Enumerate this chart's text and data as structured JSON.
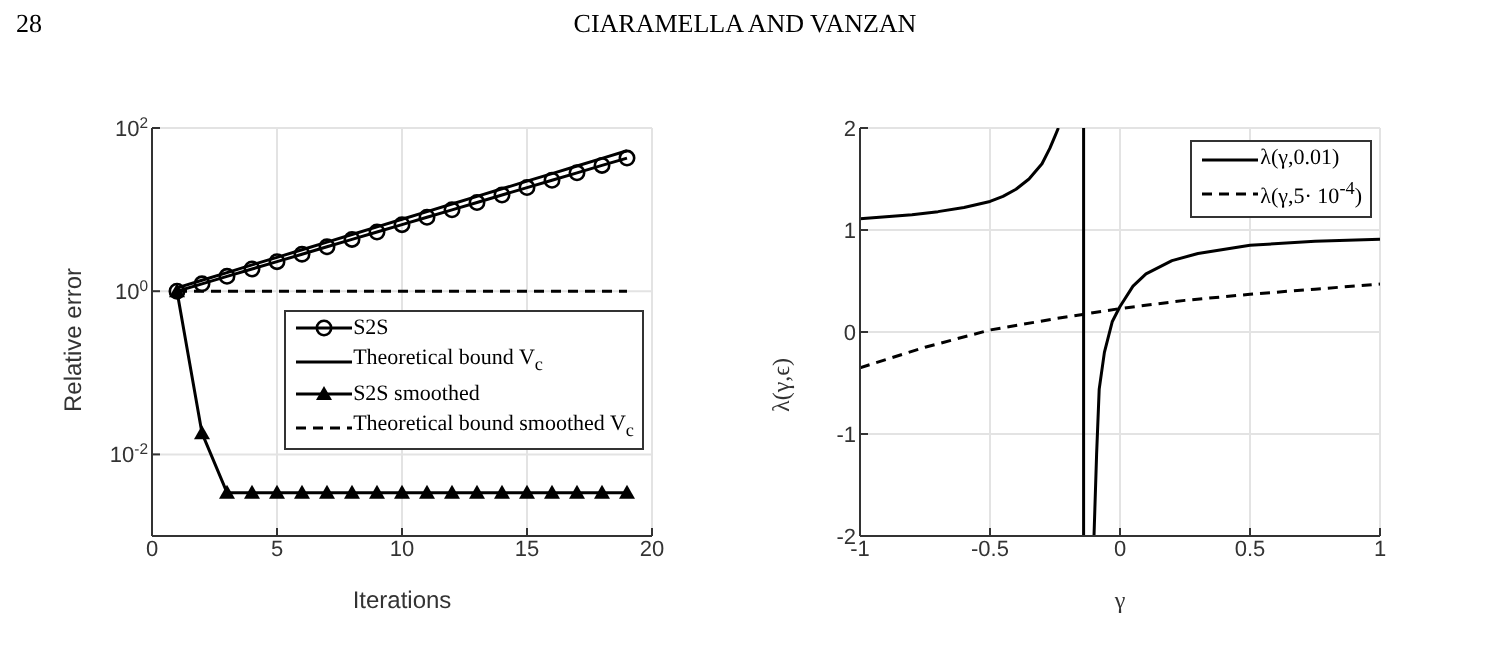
{
  "chart_data": [
    {
      "type": "line",
      "annotations": [
        "28",
        "CIARAMELLA AND VANZAN"
      ],
      "xlabel": "Iterations",
      "ylabel": "Relative error",
      "log": "y",
      "grid": true,
      "legend": "bottom right",
      "xlim": [
        0,
        20
      ],
      "xticks": [
        0,
        5,
        10,
        15,
        20
      ],
      "ylim": [
        0.001,
        100
      ],
      "yticks": [
        {
          "value": 0.01,
          "label": "10$^{-2}$"
        },
        {
          "value": 1,
          "label": "10$^{0}$"
        },
        {
          "value": 100,
          "label": "10$^{2}$"
        }
      ],
      "x": [
        1,
        2,
        3,
        4,
        5,
        6,
        7,
        8,
        9,
        10,
        11,
        12,
        13,
        14,
        15,
        16,
        17,
        18,
        19
      ],
      "series": [
        {
          "name": "S2S",
          "color": "#000000",
          "marker": "circle",
          "line_style": "solid",
          "values": [
            1,
            1.23,
            1.52,
            1.87,
            2.3,
            2.84,
            3.5,
            4.31,
            5.31,
            6.54,
            8.06,
            9.93,
            12.2,
            15.1,
            18.6,
            22.9,
            28.2,
            34.8,
            42.8
          ]
        },
        {
          "name": "Theoretical bound V$_{c}$",
          "color": "#000000",
          "marker": "none",
          "line_style": "solid",
          "values": [
            1.1,
            1.36,
            1.69,
            2.1,
            2.6,
            3.22,
            3.99,
            4.95,
            6.14,
            7.61,
            9.43,
            11.7,
            14.5,
            18,
            22.3,
            27.6,
            34.2,
            42.4,
            52.6
          ]
        },
        {
          "name": "S2S smoothed",
          "color": "#000000",
          "marker": "triangle",
          "line_style": "solid",
          "values": [
            1,
            0.0182,
            0.0034,
            0.0034,
            0.0034,
            0.0034,
            0.0034,
            0.0034,
            0.0034,
            0.0034,
            0.0034,
            0.0034,
            0.0034,
            0.0034,
            0.0034,
            0.0034,
            0.0034,
            0.0034,
            0.0034
          ]
        },
        {
          "name": "Theoretical bound smoothed V$_{c}$",
          "color": "#000000",
          "marker": "none",
          "line_style": "dashed",
          "values": [
            1,
            1,
            1,
            1,
            1,
            1,
            1,
            1,
            1,
            1,
            1,
            1,
            1,
            1,
            1,
            1,
            1,
            1,
            1
          ]
        }
      ]
    },
    {
      "type": "line",
      "xlabel": "γ",
      "ylabel": "λ(γ,ϵ)",
      "grid": true,
      "legend": "top right",
      "xlim": [
        -1,
        1
      ],
      "xticks": [
        -1,
        -0.5,
        0,
        0.5,
        1
      ],
      "ylim": [
        -2,
        2
      ],
      "yticks": [
        -2,
        -1,
        0,
        1,
        2
      ],
      "ref_lines": [
        {
          "axis": "x",
          "value": -0.14,
          "color": "#000000"
        }
      ],
      "series": [
        {
          "name": "λ(γ,0.01)",
          "color": "#000000",
          "marker": "none",
          "line_style": "solid",
          "x": [
            -1,
            -0.9,
            -0.8,
            -0.7,
            -0.6,
            -0.5,
            -0.45,
            -0.4,
            -0.35,
            -0.3,
            -0.27,
            -0.25,
            -0.237,
            -0.14,
            -0.1,
            -0.09,
            -0.08,
            -0.06,
            -0.03,
            0,
            0.05,
            0.1,
            0.2,
            0.3,
            0.5,
            0.75,
            1
          ],
          "values": [
            1.11,
            1.13,
            1.15,
            1.18,
            1.22,
            1.28,
            1.33,
            1.4,
            1.5,
            1.65,
            1.8,
            1.92,
            2,
            null,
            -2,
            -1.2,
            -0.56,
            -0.2,
            0.1,
            0.25,
            0.45,
            0.57,
            0.7,
            0.77,
            0.85,
            0.89,
            0.91
          ]
        },
        {
          "name": "λ(γ,5· 10$^{-4}$)",
          "color": "#000000",
          "marker": "none",
          "line_style": "dashed",
          "x": [
            -1,
            -0.75,
            -0.5,
            -0.25,
            0,
            0.25,
            0.5,
            0.75,
            1
          ],
          "values": [
            -0.35,
            -0.15,
            0.02,
            0.13,
            0.23,
            0.31,
            0.37,
            0.42,
            0.47
          ]
        }
      ]
    }
  ]
}
